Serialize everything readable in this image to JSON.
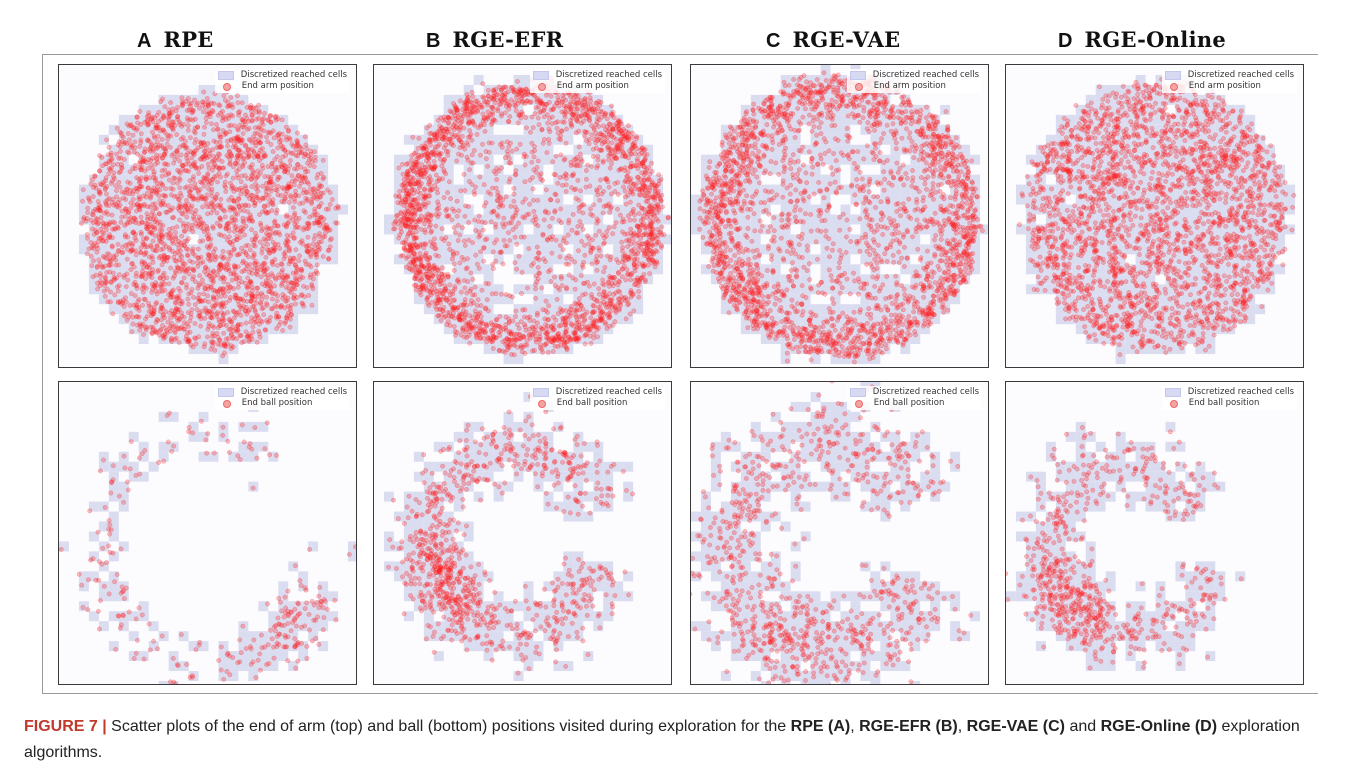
{
  "columns": [
    {
      "letter": "A",
      "name": "RPE"
    },
    {
      "letter": "B",
      "name": "RGE-EFR"
    },
    {
      "letter": "C",
      "name": "RGE-VAE"
    },
    {
      "letter": "D",
      "name": "RGE-Online"
    }
  ],
  "legend": {
    "cells": "Discretized reached cells",
    "arm": "End arm position",
    "ball": "End ball position"
  },
  "colors": {
    "point": "#ff1a1a",
    "cell": "#dadcf0"
  },
  "caption": {
    "label": "FIGURE 7 |",
    "t1": " Scatter plots of the end of arm (top) and ball (bottom) positions visited during exploration for the ",
    "b1": "RPE (A)",
    "t2": ", ",
    "b2": "RGE-EFR (B)",
    "t3": ", ",
    "b3": "RGE-VAE (C)",
    "t4": " and ",
    "b4": "RGE-Online (D)",
    "t5": " exploration algorithms."
  },
  "chart_data": [
    {
      "type": "scatter",
      "panel": "A-top",
      "series": [
        {
          "name": "Discretized reached cells"
        },
        {
          "name": "End arm position"
        }
      ],
      "distribution": "filled disk, uniform density",
      "points_approx": 2600
    },
    {
      "type": "scatter",
      "panel": "B-top",
      "series": [
        {
          "name": "Discretized reached cells"
        },
        {
          "name": "End arm position"
        }
      ],
      "distribution": "ring, dense outer annulus, sparse center",
      "points_approx": 2600
    },
    {
      "type": "scatter",
      "panel": "C-top",
      "series": [
        {
          "name": "Discretized reached cells"
        },
        {
          "name": "End arm position"
        }
      ],
      "distribution": "ring, dense outer annulus, sparse center",
      "points_approx": 2600
    },
    {
      "type": "scatter",
      "panel": "D-top",
      "series": [
        {
          "name": "Discretized reached cells"
        },
        {
          "name": "End arm position"
        }
      ],
      "distribution": "filled disk, uniform density",
      "points_approx": 2600
    },
    {
      "type": "scatter",
      "panel": "A-bottom",
      "series": [
        {
          "name": "Discretized reached cells"
        },
        {
          "name": "End ball position"
        }
      ],
      "distribution": "sparse open ring, cluster at bottom-right",
      "points_approx": 260
    },
    {
      "type": "scatter",
      "panel": "B-bottom",
      "series": [
        {
          "name": "Discretized reached cells"
        },
        {
          "name": "End ball position"
        }
      ],
      "distribution": "open ring, dense on left and bottom",
      "points_approx": 900
    },
    {
      "type": "scatter",
      "panel": "C-bottom",
      "series": [
        {
          "name": "Discretized reached cells"
        },
        {
          "name": "End ball position"
        }
      ],
      "distribution": "wide C-shaped ring open to the right",
      "points_approx": 900
    },
    {
      "type": "scatter",
      "panel": "D-bottom",
      "series": [
        {
          "name": "Discretized reached cells"
        },
        {
          "name": "End ball position"
        }
      ],
      "distribution": "open ring, dense lower-left",
      "points_approx": 700
    }
  ]
}
